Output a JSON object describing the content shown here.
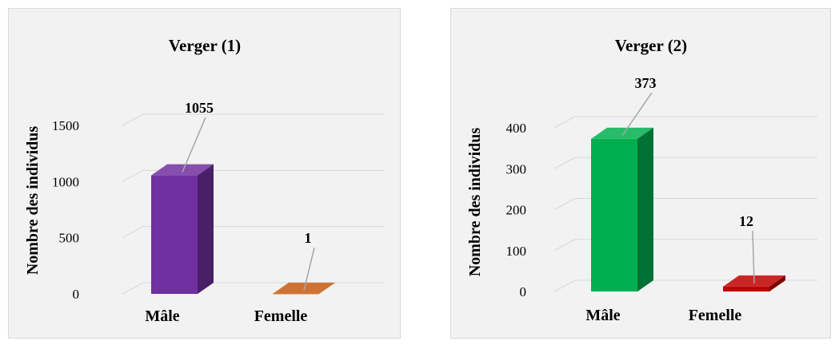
{
  "charts": [
    {
      "title": "Verger (1)",
      "ylabel": "Nombre des individus",
      "yticks": [
        "0",
        "500",
        "1000",
        "1500"
      ],
      "ylim": [
        0,
        1500
      ],
      "categories": [
        "Mâle",
        "Femelle"
      ],
      "values": [
        1055,
        1
      ],
      "data_labels": [
        "1055",
        "1"
      ],
      "colors": [
        "#7030a0",
        "#c55a11"
      ]
    },
    {
      "title": "Verger (2)",
      "ylabel": "Nombre des individus",
      "yticks": [
        "0",
        "100",
        "200",
        "300",
        "400"
      ],
      "ylim": [
        0,
        400
      ],
      "categories": [
        "Mâle",
        "Femelle"
      ],
      "values": [
        373,
        12
      ],
      "data_labels": [
        "373",
        "12"
      ],
      "colors": [
        "#00b050",
        "#c00000"
      ]
    }
  ],
  "chart_data": [
    {
      "type": "bar",
      "title": "Verger (1)",
      "xlabel": "",
      "ylabel": "Nombre des individus",
      "categories": [
        "Mâle",
        "Femelle"
      ],
      "values": [
        1055,
        1
      ],
      "ylim": [
        0,
        1500
      ],
      "yticks": [
        0,
        500,
        1000,
        1500
      ],
      "grid": true,
      "legend": "none",
      "style": "3d-column"
    },
    {
      "type": "bar",
      "title": "Verger (2)",
      "xlabel": "",
      "ylabel": "Nombre des individus",
      "categories": [
        "Mâle",
        "Femelle"
      ],
      "values": [
        373,
        12
      ],
      "ylim": [
        0,
        400
      ],
      "yticks": [
        0,
        100,
        200,
        300,
        400
      ],
      "grid": true,
      "legend": "none",
      "style": "3d-column"
    }
  ]
}
